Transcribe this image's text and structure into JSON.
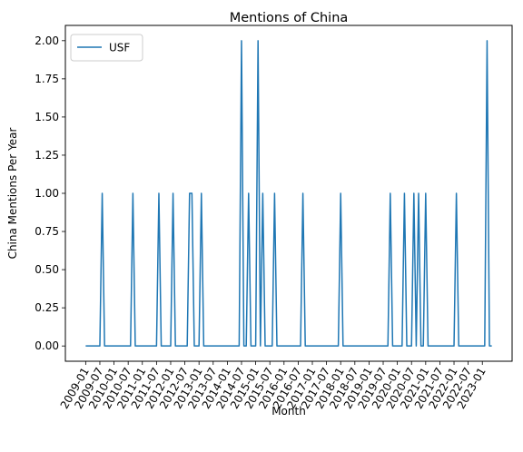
{
  "chart_data": {
    "type": "line",
    "title": "Mentions of China",
    "xlabel": "Month",
    "ylabel": "China Mentions Per Year",
    "x_start": "2009-01",
    "x_end": "2023-05",
    "x_ticks": [
      "2009-01",
      "2009-07",
      "2010-01",
      "2010-07",
      "2011-01",
      "2011-07",
      "2012-01",
      "2012-07",
      "2013-01",
      "2013-07",
      "2014-01",
      "2014-07",
      "2015-01",
      "2015-07",
      "2016-01",
      "2016-07",
      "2017-01",
      "2017-07",
      "2018-01",
      "2018-07",
      "2019-01",
      "2019-07",
      "2020-01",
      "2020-07",
      "2021-01",
      "2021-07",
      "2022-01",
      "2022-07",
      "2023-01"
    ],
    "y_ticks": [
      "0.00",
      "0.25",
      "0.50",
      "0.75",
      "1.00",
      "1.25",
      "1.50",
      "1.75",
      "2.00"
    ],
    "ylim": [
      -0.1,
      2.1
    ],
    "grid": false,
    "legend_position": "top-left",
    "series": [
      {
        "name": "USF",
        "color": "#1f77b4",
        "nonzero_points": [
          {
            "x": "2009-08",
            "y": 1
          },
          {
            "x": "2010-09",
            "y": 1
          },
          {
            "x": "2011-08",
            "y": 1
          },
          {
            "x": "2012-02",
            "y": 1
          },
          {
            "x": "2012-09",
            "y": 1
          },
          {
            "x": "2012-10",
            "y": 1
          },
          {
            "x": "2013-02",
            "y": 1
          },
          {
            "x": "2014-07",
            "y": 2
          },
          {
            "x": "2014-10",
            "y": 1
          },
          {
            "x": "2015-02",
            "y": 2
          },
          {
            "x": "2015-04",
            "y": 1
          },
          {
            "x": "2015-09",
            "y": 1
          },
          {
            "x": "2016-09",
            "y": 1
          },
          {
            "x": "2018-01",
            "y": 1
          },
          {
            "x": "2019-10",
            "y": 1
          },
          {
            "x": "2020-04",
            "y": 1
          },
          {
            "x": "2020-08",
            "y": 1
          },
          {
            "x": "2020-10",
            "y": 1
          },
          {
            "x": "2021-01",
            "y": 1
          },
          {
            "x": "2022-02",
            "y": 1
          },
          {
            "x": "2023-03",
            "y": 2
          }
        ]
      }
    ]
  }
}
